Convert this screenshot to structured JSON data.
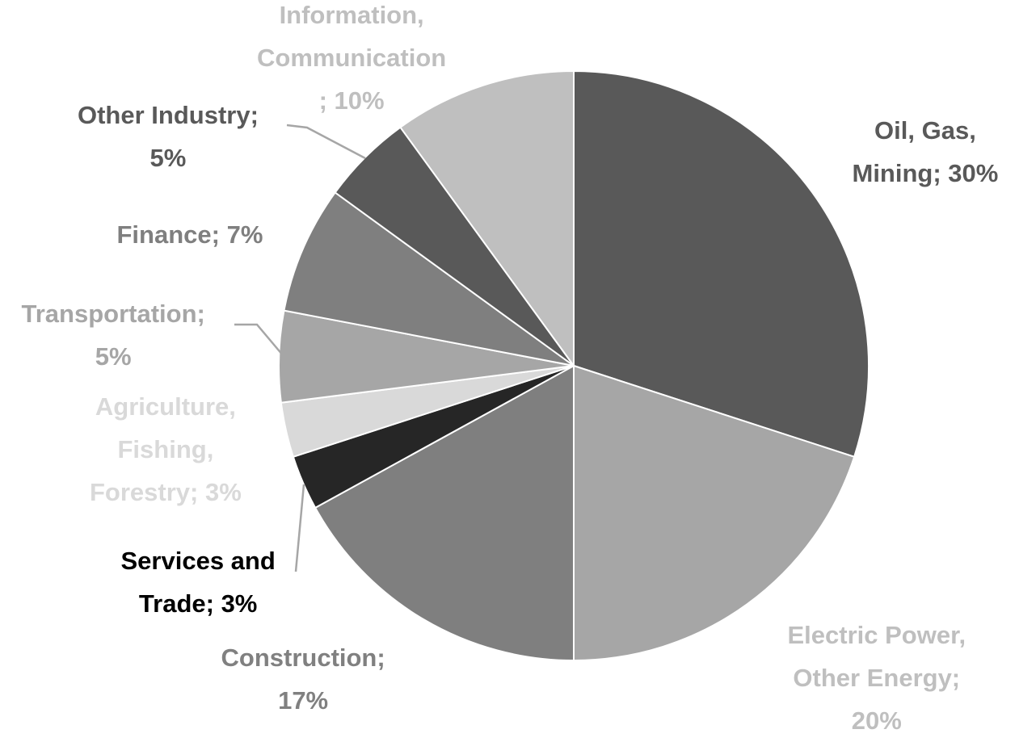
{
  "chart_data": {
    "type": "pie",
    "title": "",
    "slices": [
      {
        "name": "Oil, Gas, Mining",
        "value": 30,
        "label_lines": [
          "Oil, Gas,",
          "Mining; 30%"
        ],
        "color": "#595959"
      },
      {
        "name": "Electric Power, Other Energy",
        "value": 20,
        "label_lines": [
          "Electric Power,",
          "Other Energy;",
          "20%"
        ],
        "color": "#a6a6a6"
      },
      {
        "name": "Construction",
        "value": 17,
        "label_lines": [
          "Construction;",
          "17%"
        ],
        "color": "#7f7f7f"
      },
      {
        "name": "Services and Trade",
        "value": 3,
        "label_lines": [
          "Services and",
          "Trade; 3%"
        ],
        "color": "#262626"
      },
      {
        "name": "Agriculture, Fishing, Forestry",
        "value": 3,
        "label_lines": [
          "Agriculture,",
          "Fishing,",
          "Forestry; 3%"
        ],
        "color": "#d9d9d9"
      },
      {
        "name": "Transportation",
        "value": 5,
        "label_lines": [
          "Transportation;",
          "5%"
        ],
        "color": "#a6a6a6"
      },
      {
        "name": "Finance",
        "value": 7,
        "label_lines": [
          "Finance; 7%"
        ],
        "color": "#7f7f7f"
      },
      {
        "name": "Other Industry",
        "value": 5,
        "label_lines": [
          "Other Industry;",
          "5%"
        ],
        "color": "#595959"
      },
      {
        "name": "Information, Communication",
        "value": 10,
        "label_lines": [
          "Information,",
          "Communication",
          "; 10%"
        ],
        "color": "#bfbfbf"
      }
    ],
    "label_colors": [
      "#595959",
      "#bfbfbf",
      "#808080",
      "#000000",
      "#d9d9d9",
      "#a6a6a6",
      "#7f7f7f",
      "#595959",
      "#bfbfbf"
    ],
    "legend": "none"
  }
}
